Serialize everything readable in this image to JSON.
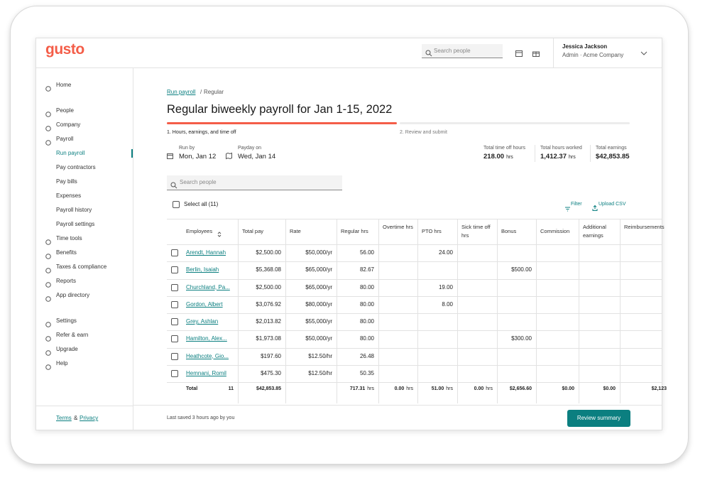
{
  "header": {
    "logo": "gusto",
    "search_placeholder": "Search people",
    "user_name": "Jessica Jackson",
    "user_role": "Admin · Acme Company"
  },
  "sidebar": {
    "sections": [
      [
        {
          "label": "Home"
        }
      ],
      [
        {
          "label": "People"
        },
        {
          "label": "Company"
        },
        {
          "label": "Payroll",
          "children": [
            "Run payroll",
            "Pay contractors",
            "Pay bills",
            "Expenses",
            "Payroll history",
            "Payroll settings"
          ]
        },
        {
          "label": "Time tools"
        },
        {
          "label": "Benefits"
        },
        {
          "label": "Taxes & compliance"
        },
        {
          "label": "Reports"
        },
        {
          "label": "App directory"
        }
      ],
      [
        {
          "label": "Settings"
        },
        {
          "label": "Refer & earn"
        },
        {
          "label": "Upgrade"
        },
        {
          "label": "Help"
        }
      ]
    ],
    "footer": {
      "terms": "Terms",
      "amp": "&",
      "privacy": "Privacy"
    }
  },
  "breadcrumb": {
    "link": "Run payroll",
    "separator": "/",
    "current": "Regular"
  },
  "title": "Regular biweekly payroll for Jan 1-15, 2022",
  "steps": [
    "1. Hours, earnings, and time off",
    "2. Review and submit"
  ],
  "run_by": {
    "label": "Run by",
    "value": "Mon, Jan 12"
  },
  "payday": {
    "label": "Payday on",
    "value": "Wed, Jan 14"
  },
  "totals": [
    {
      "label": "Total time off hours",
      "value": "218.00",
      "unit": "hrs"
    },
    {
      "label": "Total hours worked",
      "value": "1,412.37",
      "unit": "hrs"
    },
    {
      "label": "Total earnings",
      "value": "$42,853.85"
    }
  ],
  "search_placeholder": "Search people",
  "select_all": "Select all (11)",
  "actions": {
    "filter": "Filter",
    "upload": "Upload CSV"
  },
  "table": {
    "columns": [
      "Employees",
      "Total pay",
      "Rate",
      "Regular hrs",
      "Overtime hrs",
      "PTO hrs",
      "Sick time off hrs",
      "Bonus",
      "Commission",
      "Additional earnings",
      "Reimbursements"
    ],
    "rows": [
      {
        "name": "Arendt, Hannah",
        "total_pay": "$2,500.00",
        "rate": "$50,000/yr",
        "regular_hrs": "56.00",
        "pto_hrs": "24.00"
      },
      {
        "name": "Berlin, Isaiah",
        "total_pay": "$5,368.08",
        "rate": "$65,000/yr",
        "regular_hrs": "82.67",
        "bonus": "$500.00"
      },
      {
        "name": "Churchland, Pa...",
        "total_pay": "$2,500.00",
        "rate": "$65,000/yr",
        "regular_hrs": "80.00",
        "pto_hrs": "19.00"
      },
      {
        "name": "Gordon, Albert",
        "total_pay": "$3,076.92",
        "rate": "$80,000/yr",
        "regular_hrs": "80.00",
        "pto_hrs": "8.00"
      },
      {
        "name": "Grey, Ashlan",
        "total_pay": "$2,013.82",
        "rate": "$55,000/yr",
        "regular_hrs": "80.00"
      },
      {
        "name": "Hamilton, Alex...",
        "total_pay": "$1,973.08",
        "rate": "$50,000/yr",
        "regular_hrs": "80.00",
        "bonus": "$300.00"
      },
      {
        "name": "Heathcote, Gio...",
        "total_pay": "$197.60",
        "rate": "$12.50/hr",
        "regular_hrs": "26.48"
      },
      {
        "name": "Hemnani, Romil",
        "total_pay": "$475.30",
        "rate": "$12.50/hr",
        "regular_hrs": "50.35"
      }
    ],
    "total": {
      "label": "Total",
      "count": "11",
      "unit": "hrs",
      "total_pay": "$42,853.85",
      "regular_hrs": "717.31",
      "overtime_hrs": "0.00",
      "pto_hrs": "51.00",
      "sick_hrs": "0.00",
      "bonus": "$2,656.60",
      "commission": "$0.00",
      "additional_earnings": "$0.00",
      "reimbursements": "$2,123"
    }
  },
  "footer": {
    "saved": "Last saved 3 hours ago by you",
    "button": "Review summary"
  }
}
